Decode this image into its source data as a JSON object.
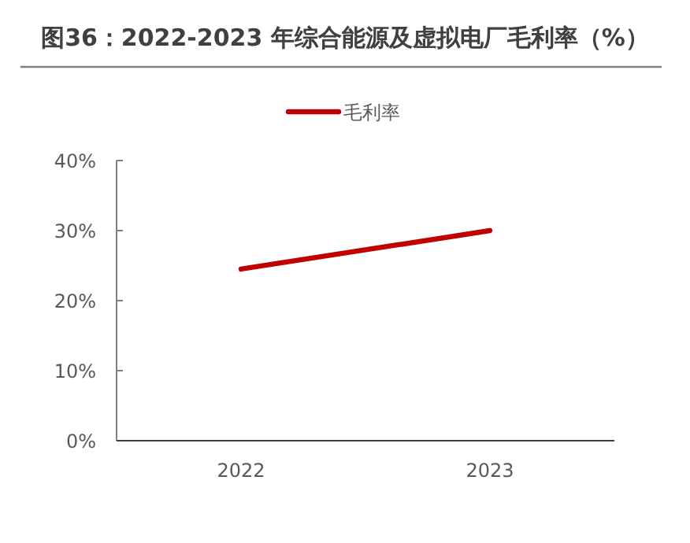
{
  "chart_data": {
    "type": "line",
    "title": "图36：2022-2023 年综合能源及虚拟电厂毛利率（%）",
    "categories": [
      "2022",
      "2023"
    ],
    "series": [
      {
        "name": "毛利率",
        "color": "#c00000",
        "values": [
          24.5,
          30
        ]
      }
    ],
    "ylim": [
      0,
      40
    ],
    "yticks": [
      {
        "value": 0,
        "label": "0%"
      },
      {
        "value": 10,
        "label": "10%"
      },
      {
        "value": 20,
        "label": "20%"
      },
      {
        "value": 30,
        "label": "30%"
      },
      {
        "value": 40,
        "label": "40%"
      }
    ],
    "legend": "top",
    "line_style": "solid"
  }
}
